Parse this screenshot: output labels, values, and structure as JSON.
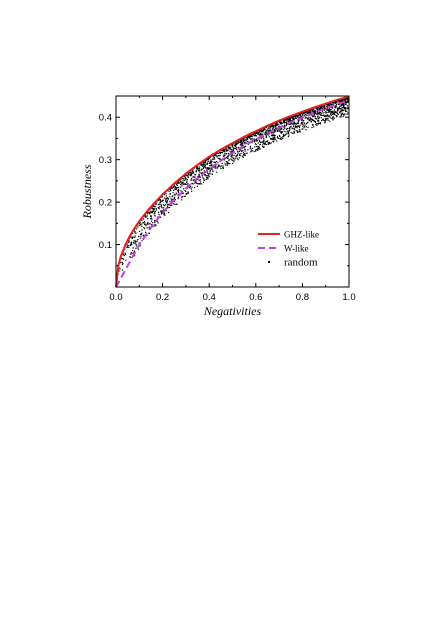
{
  "chart_data": {
    "type": "scatter",
    "xlabel": "Negativities",
    "ylabel": "Robustness",
    "xlim": [
      0,
      1
    ],
    "ylim": [
      0,
      0.45
    ],
    "xticks": [
      "0.0",
      "0.2",
      "0.4",
      "0.6",
      "0.8",
      "1.0"
    ],
    "yticks": [
      "0.1",
      "0.2",
      "0.3",
      "0.4"
    ],
    "grid": false,
    "legend_position": "lower-right",
    "series": [
      {
        "name": "GHZ-like",
        "kind": "line",
        "style": "solid",
        "color": "#e8211c",
        "x": [
          0,
          0.01,
          0.02,
          0.04,
          0.06,
          0.08,
          0.1,
          0.13,
          0.16,
          0.2,
          0.25,
          0.3,
          0.35,
          0.4,
          0.45,
          0.5,
          0.55,
          0.6,
          0.65,
          0.7,
          0.75,
          0.8,
          0.85,
          0.9,
          0.95,
          1.0
        ],
        "y": [
          0,
          0.05,
          0.071,
          0.099,
          0.121,
          0.139,
          0.155,
          0.176,
          0.195,
          0.218,
          0.244,
          0.267,
          0.288,
          0.307,
          0.324,
          0.339,
          0.354,
          0.367,
          0.38,
          0.392,
          0.403,
          0.413,
          0.423,
          0.432,
          0.441,
          0.449
        ]
      },
      {
        "name": "W-like",
        "kind": "line",
        "style": "dashed",
        "color": "#c03ee0",
        "x": [
          0,
          0.02,
          0.05,
          0.08,
          0.1,
          0.15,
          0.2,
          0.25,
          0.3,
          0.35,
          0.4,
          0.45,
          0.5,
          0.55,
          0.6,
          0.65,
          0.7,
          0.75,
          0.8,
          0.85,
          0.9,
          0.95,
          1.0
        ],
        "y": [
          0,
          0.02,
          0.05,
          0.08,
          0.1,
          0.14,
          0.175,
          0.205,
          0.232,
          0.256,
          0.278,
          0.298,
          0.316,
          0.333,
          0.348,
          0.362,
          0.375,
          0.388,
          0.399,
          0.41,
          0.421,
          0.431,
          0.44
        ]
      },
      {
        "name": "random",
        "kind": "scatter",
        "color": "#000000",
        "count": 2500,
        "x_range": [
          0,
          1
        ],
        "description_lower_bound": "W-like",
        "description_upper_bound": "GHZ-like"
      }
    ]
  }
}
